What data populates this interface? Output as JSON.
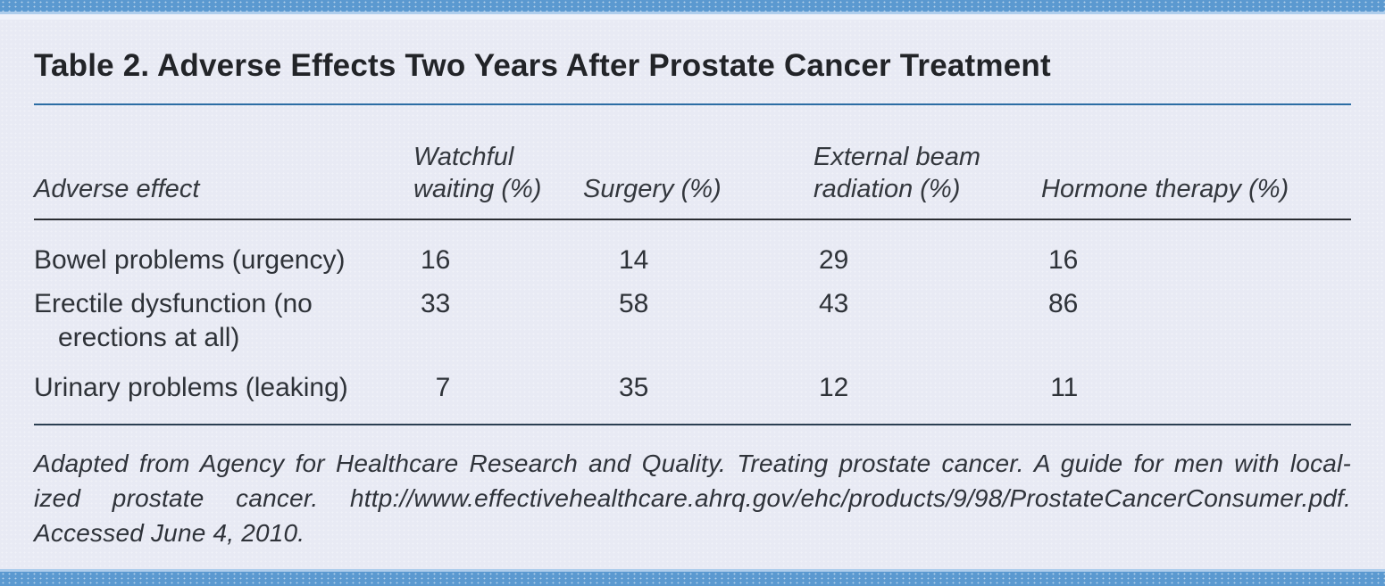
{
  "title": "Table 2. Adverse Effects Two Years After Prostate Cancer Treatment",
  "table": {
    "columns": [
      "Adverse effect",
      "Watchful waiting (%)",
      "Surgery (%)",
      "External beam radiation (%)",
      "Hormone therapy (%)"
    ],
    "rows": [
      {
        "label": "Bowel problems (urgency)",
        "values": [
          "16",
          "14",
          "29",
          "16"
        ]
      },
      {
        "label": "Erectile dysfunction (no erections at all)",
        "values": [
          "33",
          "58",
          "43",
          "86"
        ]
      },
      {
        "label": "Urinary problems (leaking)",
        "values": [
          "7",
          "35",
          "12",
          "11"
        ]
      }
    ]
  },
  "footnote": {
    "lines": [
      "Adapted from Agency for Healthcare Research and Quality. Treating prostate cancer. A guide for men with local-",
      "ized prostate cancer. http://www.effectivehealthcare.ahrq.gov/ehc/products/9/98/ProstateCancerConsumer.pdf.",
      "Accessed June 4, 2010."
    ]
  },
  "colors": {
    "bar_blue": "#5b99d0",
    "strip_blue": "#aecdec",
    "panel": "#e8eaf4",
    "title_text": "#222428",
    "body_text": "#2e3238",
    "title_rule": "#2c6da4",
    "header_rule": "#292c31",
    "footer_rule": "#2b3f52"
  },
  "chart_data": {
    "type": "table",
    "title": "Table 2. Adverse Effects Two Years After Prostate Cancer Treatment",
    "categories": [
      "Bowel problems (urgency)",
      "Erectile dysfunction (no erections at all)",
      "Urinary problems (leaking)"
    ],
    "series": [
      {
        "name": "Watchful waiting (%)",
        "values": [
          16,
          33,
          7
        ]
      },
      {
        "name": "Surgery (%)",
        "values": [
          14,
          58,
          35
        ]
      },
      {
        "name": "External beam radiation (%)",
        "values": [
          29,
          43,
          12
        ]
      },
      {
        "name": "Hormone therapy (%)",
        "values": [
          16,
          86,
          11
        ]
      }
    ]
  }
}
